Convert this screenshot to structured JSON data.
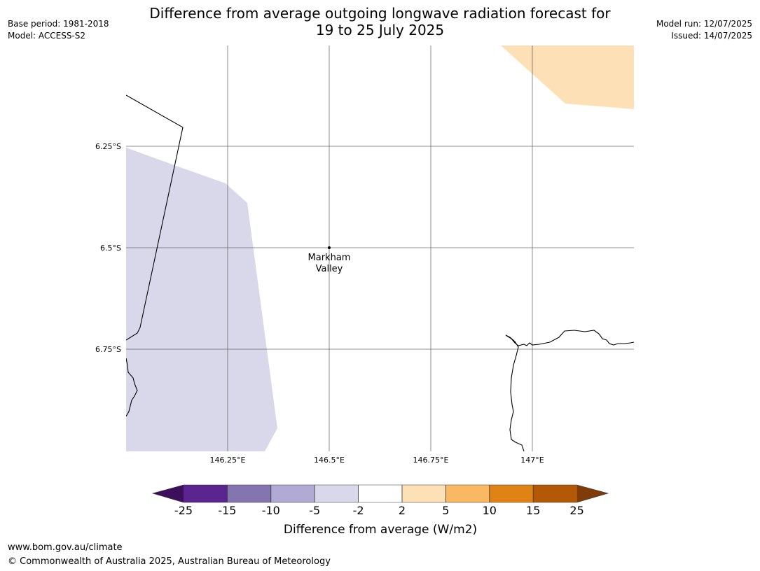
{
  "header": {
    "base_period": "Base period: 1981-2018",
    "model": "Model: ACCESS-S2",
    "title_line1": "Difference from average outgoing longwave radiation forecast for",
    "title_line2": "19 to 25 July 2025",
    "model_run": "Model run: 12/07/2025",
    "issued": "Issued: 14/07/2025"
  },
  "map": {
    "lat_labels": [
      "6.25°S",
      "6.5°S",
      "6.75°S"
    ],
    "lon_labels": [
      "146.25°E",
      "146.5°E",
      "146.75°E",
      "147°E"
    ],
    "place": {
      "name_line1": "Markham",
      "name_line2": "Valley"
    },
    "fill_colors": {
      "negative_band": "#d8d8ea",
      "positive_band": "#fde0b6"
    }
  },
  "colorbar": {
    "label": "Difference from average (W/m2)",
    "ticks": [
      "-25",
      "-15",
      "-10",
      "-5",
      "-2",
      "2",
      "5",
      "10",
      "15",
      "25"
    ],
    "colors": [
      "#3b0f5b",
      "#5b2590",
      "#8475b0",
      "#b1aad4",
      "#d8d8ea",
      "#ffffff",
      "#fde0b6",
      "#fbb862",
      "#e08214",
      "#b35806",
      "#7f3b08"
    ]
  },
  "footer": {
    "url": "www.bom.gov.au/climate",
    "copyright": "© Commonwealth of Australia 2025, Australian Bureau of Meteorology"
  }
}
